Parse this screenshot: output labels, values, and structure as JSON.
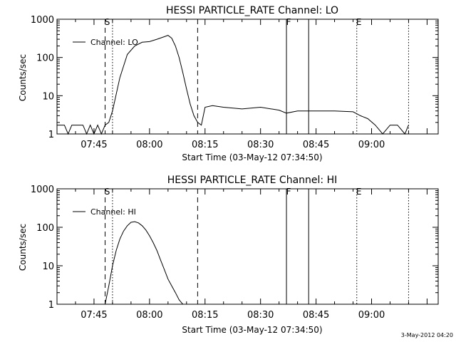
{
  "chart_data": [
    {
      "type": "line",
      "title": "HESSI PARTICLE_RATE Channel: LO",
      "xlabel": "Start Time (03-May-12 07:34:50)",
      "ylabel": "Counts/sec",
      "yscale": "log",
      "ylim": [
        1,
        1000
      ],
      "xlim_minutes_after_0735": [
        0,
        103
      ],
      "xticks": [
        "07:45",
        "08:00",
        "08:15",
        "08:30",
        "08:45",
        "09:00"
      ],
      "yticks": [
        "1",
        "10",
        "100",
        "1000"
      ],
      "legend": "top-left",
      "grid": false,
      "markers": [
        {
          "label": "S",
          "time": "07:48",
          "style": "dashed"
        },
        {
          "label": "",
          "time": "07:50",
          "style": "dotted"
        },
        {
          "label": "",
          "time": "08:13",
          "style": "dashed"
        },
        {
          "label": "F",
          "time": "08:37",
          "style": "solid"
        },
        {
          "label": "",
          "time": "08:43",
          "style": "solid"
        },
        {
          "label": "E",
          "time": "08:56",
          "style": "dotted"
        },
        {
          "label": "",
          "time": "09:10",
          "style": "dotted"
        }
      ],
      "series": [
        {
          "name": "Channel: LO",
          "x": [
            "07:35",
            "07:37",
            "07:38",
            "07:39",
            "07:42",
            "07:43",
            "07:44",
            "07:45",
            "07:46",
            "07:47",
            "07:48",
            "07:49",
            "07:50",
            "07:52",
            "07:54",
            "07:56",
            "07:58",
            "08:00",
            "08:02",
            "08:04",
            "08:05",
            "08:06",
            "08:07",
            "08:08",
            "08:09",
            "08:10",
            "08:11",
            "08:12",
            "08:13",
            "08:14",
            "08:15",
            "08:17",
            "08:20",
            "08:25",
            "08:30",
            "08:35",
            "08:37",
            "08:40",
            "08:45",
            "08:50",
            "08:55",
            "08:57",
            "08:59",
            "09:01",
            "09:03",
            "09:05",
            "09:07",
            "09:09",
            "09:10"
          ],
          "values": [
            1.7,
            1.7,
            1,
            1.7,
            1.7,
            1,
            1.7,
            1,
            1.7,
            1,
            1.7,
            2,
            4,
            30,
            120,
            200,
            250,
            260,
            300,
            350,
            380,
            320,
            200,
            100,
            40,
            15,
            6,
            3,
            2,
            1.7,
            5,
            5.5,
            5,
            4.5,
            5,
            4.2,
            3.5,
            4,
            4,
            4,
            3.8,
            3,
            2.5,
            1.7,
            1,
            1.7,
            1.7,
            1,
            1.7
          ]
        }
      ],
      "footer": ""
    },
    {
      "type": "line",
      "title": "HESSI PARTICLE_RATE Channel: HI",
      "xlabel": "Start Time (03-May-12 07:34:50)",
      "ylabel": "Counts/sec",
      "yscale": "log",
      "ylim": [
        1,
        1000
      ],
      "xlim_minutes_after_0735": [
        0,
        103
      ],
      "xticks": [
        "07:45",
        "08:00",
        "08:15",
        "08:30",
        "08:45",
        "09:00"
      ],
      "yticks": [
        "1",
        "10",
        "100",
        "1000"
      ],
      "legend": "top-left",
      "grid": false,
      "markers": [
        {
          "label": "S",
          "time": "07:48",
          "style": "dashed"
        },
        {
          "label": "",
          "time": "07:50",
          "style": "dotted"
        },
        {
          "label": "",
          "time": "08:13",
          "style": "dashed"
        },
        {
          "label": "F",
          "time": "08:37",
          "style": "solid"
        },
        {
          "label": "",
          "time": "08:43",
          "style": "solid"
        },
        {
          "label": "E",
          "time": "08:56",
          "style": "dotted"
        },
        {
          "label": "",
          "time": "09:10",
          "style": "dotted"
        }
      ],
      "series": [
        {
          "name": "Channel: HI",
          "x": [
            "07:48",
            "07:49",
            "07:50",
            "07:51",
            "07:52",
            "07:53",
            "07:54",
            "07:55",
            "07:56",
            "07:57",
            "07:58",
            "07:59",
            "08:00",
            "08:01",
            "08:02",
            "08:03",
            "08:04",
            "08:05",
            "08:06",
            "08:07",
            "08:08",
            "08:09"
          ],
          "values": [
            1,
            3,
            10,
            25,
            50,
            80,
            110,
            135,
            140,
            130,
            110,
            85,
            60,
            40,
            25,
            14,
            8,
            4.5,
            3,
            2,
            1.3,
            1
          ]
        }
      ]
    }
  ],
  "footer_timestamp": "3-May-2012 04:20"
}
